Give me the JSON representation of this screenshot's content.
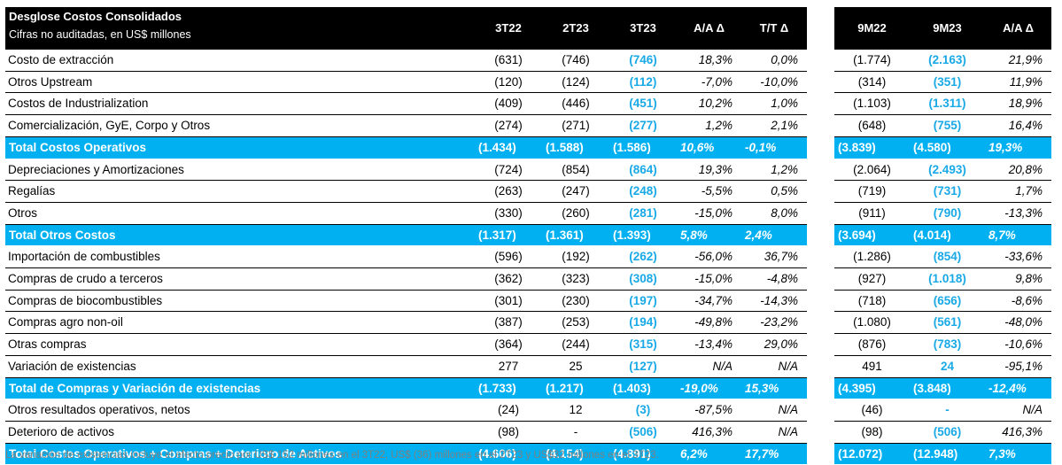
{
  "header": {
    "title": "Desglose Costos Consolidados",
    "subtitle": "Cifras no auditadas, en US$ millones",
    "left_columns": [
      "3T22",
      "2T23",
      "3T23",
      "A/A Δ",
      "T/T Δ"
    ],
    "right_columns": [
      "9M22",
      "9M23",
      "A/A Δ"
    ]
  },
  "rows": [
    {
      "label": "Costo de extracción",
      "total": false,
      "left": [
        "(631)",
        "(746)",
        "(746)",
        "18,3%",
        "0,0%"
      ],
      "right": [
        "(1.774)",
        "(2.163)",
        "21,9%"
      ]
    },
    {
      "label": "Otros Upstream",
      "total": false,
      "left": [
        "(120)",
        "(124)",
        "(112)",
        "-7,0%",
        "-10,0%"
      ],
      "right": [
        "(314)",
        "(351)",
        "11,9%"
      ]
    },
    {
      "label": "Costos de Industrialization",
      "total": false,
      "left": [
        "(409)",
        "(446)",
        "(451)",
        "10,2%",
        "1,0%"
      ],
      "right": [
        "(1.103)",
        "(1.311)",
        "18,9%"
      ]
    },
    {
      "label": "Comercialización, GyE, Corpo y Otros",
      "total": false,
      "left": [
        "(274)",
        "(271)",
        "(277)",
        "1,2%",
        "2,1%"
      ],
      "right": [
        "(648)",
        "(755)",
        "16,4%"
      ]
    },
    {
      "label": "Total Costos Operativos",
      "total": true,
      "left": [
        "(1.434)",
        "(1.588)",
        "(1.586)",
        "10,6%",
        "-0,1%"
      ],
      "right": [
        "(3.839)",
        "(4.580)",
        "19,3%"
      ]
    },
    {
      "label": "Depreciaciones y Amortizaciones",
      "total": false,
      "left": [
        "(724)",
        "(854)",
        "(864)",
        "19,3%",
        "1,2%"
      ],
      "right": [
        "(2.064)",
        "(2.493)",
        "20,8%"
      ]
    },
    {
      "label": "Regalías",
      "total": false,
      "left": [
        "(263)",
        "(247)",
        "(248)",
        "-5,5%",
        "0,5%"
      ],
      "right": [
        "(719)",
        "(731)",
        "1,7%"
      ]
    },
    {
      "label": "Otros",
      "total": false,
      "left": [
        "(330)",
        "(260)",
        "(281)",
        "-15,0%",
        "8,0%"
      ],
      "right": [
        "(911)",
        "(790)",
        "-13,3%"
      ]
    },
    {
      "label": "Total Otros Costos",
      "total": true,
      "left": [
        "(1.317)",
        "(1.361)",
        "(1.393)",
        "5,8%",
        "2,4%"
      ],
      "right": [
        "(3.694)",
        "(4.014)",
        "8,7%"
      ]
    },
    {
      "label": "Importación de combustibles",
      "total": false,
      "left": [
        "(596)",
        "(192)",
        "(262)",
        "-56,0%",
        "36,7%"
      ],
      "right": [
        "(1.286)",
        "(854)",
        "-33,6%"
      ]
    },
    {
      "label": "Compras de crudo a terceros",
      "total": false,
      "left": [
        "(362)",
        "(323)",
        "(308)",
        "-15,0%",
        "-4,8%"
      ],
      "right": [
        "(927)",
        "(1.018)",
        "9,8%"
      ]
    },
    {
      "label": "Compras de biocombustibles",
      "total": false,
      "left": [
        "(301)",
        "(230)",
        "(197)",
        "-34,7%",
        "-14,3%"
      ],
      "right": [
        "(718)",
        "(656)",
        "-8,6%"
      ]
    },
    {
      "label": "Compras agro non-oil",
      "total": false,
      "left": [
        "(387)",
        "(253)",
        "(194)",
        "-49,8%",
        "-23,2%"
      ],
      "right": [
        "(1.080)",
        "(561)",
        "-48,0%"
      ]
    },
    {
      "label": "Otras compras",
      "total": false,
      "left": [
        "(364)",
        "(244)",
        "(315)",
        "-13,4%",
        "29,0%"
      ],
      "right": [
        "(876)",
        "(783)",
        "-10,6%"
      ]
    },
    {
      "label": "Variación de existencias",
      "total": false,
      "left": [
        "277",
        "25",
        "(127)",
        "N/A",
        "N/A"
      ],
      "right": [
        "491",
        "24",
        "-95,1%"
      ]
    },
    {
      "label": "Total de Compras y Variación de existencias",
      "total": true,
      "left": [
        "(1.733)",
        "(1.217)",
        "(1.403)",
        "-19,0%",
        "15,3%"
      ],
      "right": [
        "(4.395)",
        "(3.848)",
        "-12,4%"
      ]
    },
    {
      "label": "Otros resultados operativos, netos",
      "total": false,
      "left": [
        "(24)",
        "12",
        "(3)",
        "-87,5%",
        "N/A"
      ],
      "right": [
        "(46)",
        "-",
        "N/A"
      ]
    },
    {
      "label": "Deterioro de activos",
      "total": false,
      "left": [
        "(98)",
        "-",
        "(506)",
        "416,3%",
        "N/A"
      ],
      "right": [
        "(98)",
        "(506)",
        "416,3%"
      ]
    },
    {
      "label": "Total Costos Operativos + Compras + Deterioro de Activos",
      "total": true,
      "left": [
        "(4.606)",
        "(4.154)",
        "(4.891)",
        "6,2%",
        "17,7%"
      ],
      "right": [
        "(12.072)",
        "(12.948)",
        "7,3%"
      ]
    }
  ],
  "footnote": "La variación de existencias incluye el efecto precio por US$ 152 millones en el 3T22, US$ (36) millones en el 2T23 y US$32 millones en el 3T23.",
  "colors": {
    "header_bg": "#000000",
    "total_bg": "#00b0f0",
    "highlight_text": "#18a9e6"
  }
}
